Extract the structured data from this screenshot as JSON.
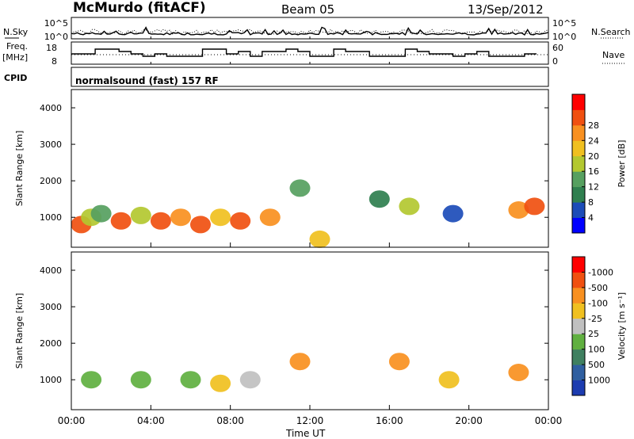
{
  "header": {
    "station": "McMurdo (fitACF)",
    "beam": "Beam 05",
    "date": "13/Sep/2012"
  },
  "chart_data": [
    {
      "type": "line",
      "name": "N.Sky / N.Search panel",
      "left_label": "N.Sky",
      "right_label": "N.Search",
      "yticks_left": [
        "10^5",
        "10^0"
      ],
      "yticks_right": [
        "10^5",
        "10^0"
      ]
    },
    {
      "type": "line",
      "name": "Freq / Nave panel",
      "left_label": "Freq.",
      "left_unit": "[MHz]",
      "right_label": "Nave",
      "yticks_left": [
        "18",
        "8"
      ],
      "yticks_right": [
        "60",
        "0"
      ]
    },
    {
      "type": "text",
      "left_label": "CPID",
      "value": "normalsound (fast) 157 RF"
    },
    {
      "type": "heatmap",
      "name": "power",
      "ylabel": "Slant Range [km]",
      "yticks": [
        "1000",
        "2000",
        "3000",
        "4000"
      ],
      "colorbar_label": "Power [dB]",
      "colorbar_ticks": [
        "4",
        "8",
        "12",
        "16",
        "20",
        "24",
        "28"
      ],
      "colorbar_colors": [
        "#0000ff",
        "#1c4cb8",
        "#2f7f4f",
        "#56a060",
        "#b3c830",
        "#f0c020",
        "#f89020",
        "#f05010",
        "#ff0000"
      ],
      "cells": [
        [
          0.5,
          800,
          28
        ],
        [
          1.0,
          1000,
          18
        ],
        [
          1.5,
          1100,
          14
        ],
        [
          2.5,
          900,
          28
        ],
        [
          3.5,
          1050,
          16
        ],
        [
          4.5,
          900,
          28
        ],
        [
          5.5,
          1000,
          24
        ],
        [
          6.5,
          800,
          28
        ],
        [
          7.5,
          1000,
          22
        ],
        [
          8.5,
          900,
          28
        ],
        [
          10.0,
          1000,
          26
        ],
        [
          11.5,
          1800,
          14
        ],
        [
          12.5,
          400,
          20
        ],
        [
          15.5,
          1500,
          8
        ],
        [
          17.0,
          1300,
          16
        ],
        [
          19.2,
          1100,
          6
        ],
        [
          22.5,
          1200,
          24
        ],
        [
          23.3,
          1300,
          28
        ]
      ]
    },
    {
      "type": "heatmap",
      "name": "velocity",
      "ylabel": "Slant Range [km]",
      "yticks": [
        "1000",
        "2000",
        "3000",
        "4000"
      ],
      "colorbar_label": "Velocity [m s⁻¹]",
      "colorbar_ticks": [
        "1000",
        "500",
        "100",
        "25",
        "-25",
        "-100",
        "-500",
        "-1000"
      ],
      "colorbar_colors": [
        "#1c3cb0",
        "#2f5fa0",
        "#3f8060",
        "#60b040",
        "#c0c0c0",
        "#f0c020",
        "#f89020",
        "#f05010",
        "#ff0000"
      ],
      "cells": [
        [
          1.0,
          1000,
          50
        ],
        [
          3.5,
          1000,
          50
        ],
        [
          6.0,
          1000,
          50
        ],
        [
          7.5,
          900,
          -100
        ],
        [
          9.0,
          1000,
          0
        ],
        [
          11.5,
          1500,
          -200
        ],
        [
          16.5,
          1500,
          -300
        ],
        [
          19.0,
          1000,
          -100
        ],
        [
          22.5,
          1200,
          -200
        ]
      ]
    }
  ],
  "x_axis": {
    "label": "Time UT",
    "ticks": [
      "00:00",
      "04:00",
      "08:00",
      "12:00",
      "16:00",
      "20:00",
      "00:00"
    ],
    "range_hours": [
      0,
      24
    ]
  },
  "y_range_km": [
    180,
    4500
  ]
}
